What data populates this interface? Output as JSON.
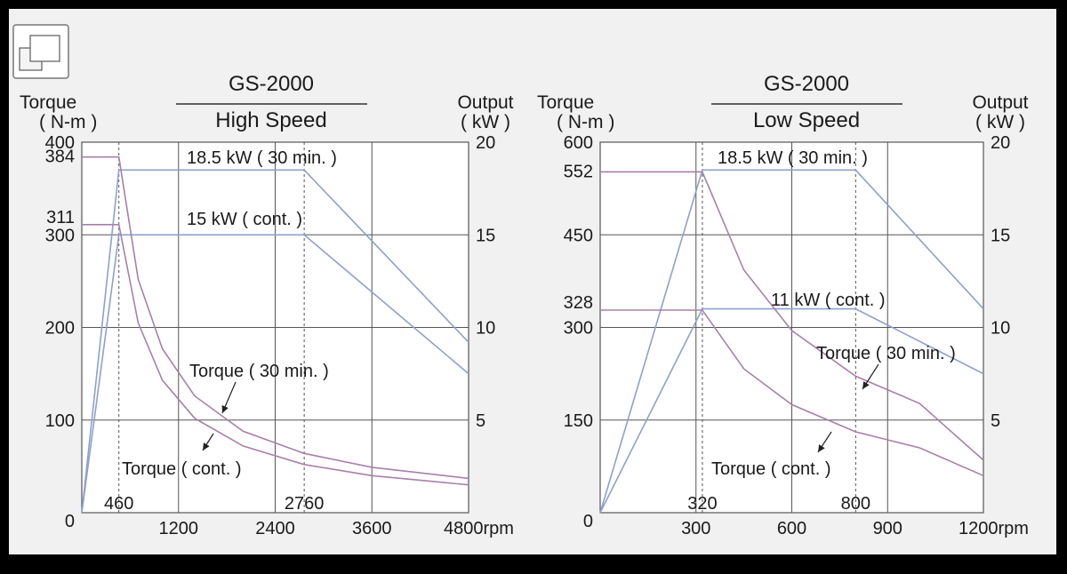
{
  "window_icon": "restore-window-icon",
  "colors": {
    "output_line": "#8ea0cf",
    "torque_line": "#a880a8",
    "grid": "#555555",
    "plot_bg": "#ffffff",
    "frame_bg": "#f1f1f1"
  },
  "chart_data": [
    {
      "type": "line",
      "title": "GS-2000",
      "subtitle": "High Speed",
      "y_left_label": [
        "Torque",
        "( N-m )"
      ],
      "y_right_label": [
        "Output",
        "( kW )"
      ],
      "x_unit": "rpm",
      "xlim": [
        0,
        4800
      ],
      "ylim_left": [
        0,
        400
      ],
      "ylim_right": [
        0,
        20
      ],
      "x_ticks": [
        1200,
        2400,
        3600,
        4800
      ],
      "x_tick_labels": [
        "1200",
        "2400",
        "3600",
        "4800rpm"
      ],
      "x_extra_ticks": [
        460,
        2760
      ],
      "x_extra_tick_labels": [
        "460",
        "2760"
      ],
      "y_left_ticks": [
        100,
        200,
        300,
        400
      ],
      "y_left_tick_labels": [
        "100",
        "200",
        "300",
        "400"
      ],
      "y_left_extra_ticks": [
        311,
        384
      ],
      "y_left_extra_tick_labels": [
        "311",
        "384"
      ],
      "y_right_ticks": [
        5,
        10,
        15,
        20
      ],
      "y_right_tick_labels": [
        "5",
        "10",
        "15",
        "20"
      ],
      "origin_label": "0",
      "grid": true,
      "series": [
        {
          "name": "18.5 kW ( 30 min. )",
          "axis": "right",
          "color": "#8ea0cf",
          "x": [
            0,
            460,
            2760,
            4800
          ],
          "y": [
            0,
            18.5,
            18.5,
            9.2
          ]
        },
        {
          "name": "15 kW ( cont. )",
          "axis": "right",
          "color": "#8ea0cf",
          "x": [
            0,
            460,
            2760,
            4800
          ],
          "y": [
            0,
            15,
            15,
            7.5
          ]
        },
        {
          "name": "Torque ( 30 min. )",
          "axis": "left",
          "color": "#a880a8",
          "x": [
            0,
            460,
            700,
            1000,
            1400,
            2000,
            2760,
            3600,
            4800
          ],
          "y": [
            384,
            384,
            252,
            177,
            126,
            88,
            64,
            49,
            37
          ]
        },
        {
          "name": "Torque ( cont. )",
          "axis": "left",
          "color": "#a880a8",
          "x": [
            0,
            460,
            700,
            1000,
            1400,
            2000,
            2760,
            3600,
            4800
          ],
          "y": [
            311,
            311,
            205,
            143,
            102,
            72,
            52,
            40,
            30
          ]
        }
      ],
      "annotations": [
        {
          "text": "18.5 kW ( 30 min. )"
        },
        {
          "text": "15 kW ( cont. )"
        },
        {
          "text": "Torque ( 30 min. )"
        },
        {
          "text": "Torque ( cont. )"
        }
      ]
    },
    {
      "type": "line",
      "title": "GS-2000",
      "subtitle": "Low Speed",
      "y_left_label": [
        "Torque",
        "( N-m )"
      ],
      "y_right_label": [
        "Output",
        "( kW )"
      ],
      "x_unit": "rpm",
      "xlim": [
        0,
        1200
      ],
      "ylim_left": [
        0,
        600
      ],
      "ylim_right": [
        0,
        20
      ],
      "x_ticks": [
        300,
        600,
        900,
        1200
      ],
      "x_tick_labels": [
        "300",
        "600",
        "900",
        "1200rpm"
      ],
      "x_extra_ticks": [
        320,
        800
      ],
      "x_extra_tick_labels": [
        "320",
        "800"
      ],
      "y_left_ticks": [
        150,
        300,
        450,
        600
      ],
      "y_left_tick_labels": [
        "150",
        "300",
        "450",
        "600"
      ],
      "y_left_extra_ticks": [
        328,
        552
      ],
      "y_left_extra_tick_labels": [
        "328",
        "552"
      ],
      "y_right_ticks": [
        5,
        10,
        15,
        20
      ],
      "y_right_tick_labels": [
        "5",
        "10",
        "15",
        "20"
      ],
      "origin_label": "0",
      "grid": true,
      "series": [
        {
          "name": "18.5 kW ( 30 min. )",
          "axis": "right",
          "color": "#8ea0cf",
          "x": [
            0,
            320,
            800,
            1200
          ],
          "y": [
            0,
            18.5,
            18.5,
            11.0
          ]
        },
        {
          "name": "11 kW ( cont. )",
          "axis": "right",
          "color": "#8ea0cf",
          "x": [
            0,
            320,
            800,
            1200
          ],
          "y": [
            0,
            11,
            11,
            7.5
          ]
        },
        {
          "name": "Torque ( 30 min. )",
          "axis": "left",
          "color": "#a880a8",
          "x": [
            0,
            320,
            450,
            600,
            800,
            1000,
            1200
          ],
          "y": [
            552,
            552,
            393,
            295,
            221,
            177,
            85
          ]
        },
        {
          "name": "Torque ( cont. )",
          "axis": "left",
          "color": "#a880a8",
          "x": [
            0,
            320,
            450,
            600,
            800,
            1000,
            1200
          ],
          "y": [
            328,
            328,
            233,
            175,
            131,
            105,
            60
          ]
        }
      ],
      "annotations": [
        {
          "text": "18.5 kW ( 30 min. )"
        },
        {
          "text": "11 kW ( cont. )"
        },
        {
          "text": "Torque ( 30 min. )"
        },
        {
          "text": "Torque ( cont. )"
        }
      ]
    }
  ]
}
